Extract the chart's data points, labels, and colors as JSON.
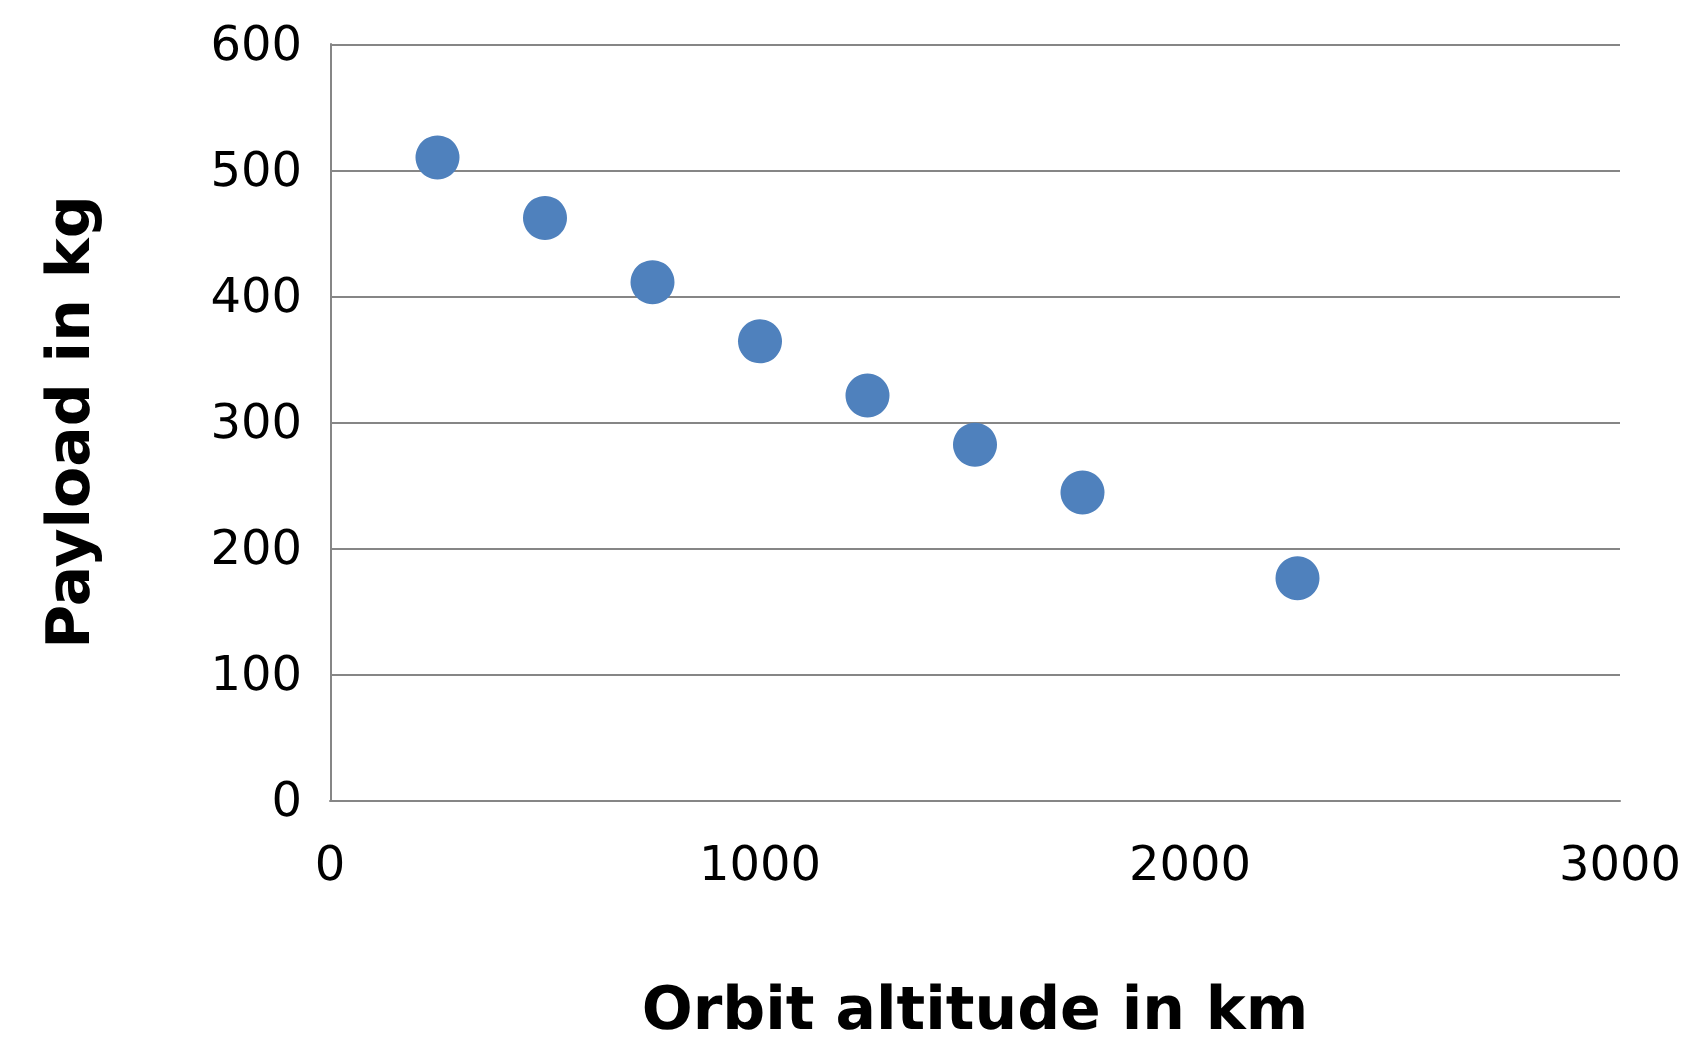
{
  "chart_data": {
    "type": "scatter",
    "xlabel": "Orbit altitude in km",
    "ylabel": "Payload in kg",
    "x": [
      250,
      500,
      750,
      1000,
      1250,
      1500,
      1750,
      2250
    ],
    "series": [
      {
        "color": "#4f81bd",
        "values": [
          510,
          462,
          411,
          364,
          321,
          282,
          244,
          176
        ]
      }
    ],
    "xlim": [
      0,
      3000
    ],
    "xticks": [
      0,
      1000,
      2000,
      3000
    ],
    "ylim": [
      0,
      600
    ],
    "yticks": [
      0,
      100,
      200,
      300,
      400,
      500,
      600
    ],
    "grid": "y",
    "marker": "circle"
  }
}
